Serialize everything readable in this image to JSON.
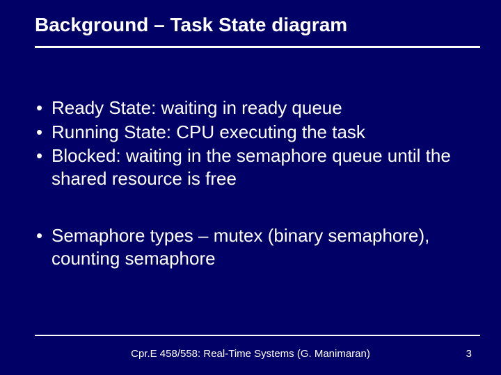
{
  "background_color": "#000066",
  "text_color": "#ffffff",
  "rule_color": "#ffffff",
  "title": "Background – Task State diagram",
  "title_fontsize": 28,
  "body_fontsize": 26,
  "bullets_group1": [
    "Ready State: waiting in ready queue",
    "Running State: CPU executing the task",
    "Blocked: waiting in the semaphore queue until the shared resource is free"
  ],
  "bullets_group2": [
    "Semaphore types – mutex (binary semaphore), counting semaphore"
  ],
  "footer": "Cpr.E 458/558: Real-Time Systems (G. Manimaran)",
  "footer_fontsize": 15,
  "page_number": "3"
}
